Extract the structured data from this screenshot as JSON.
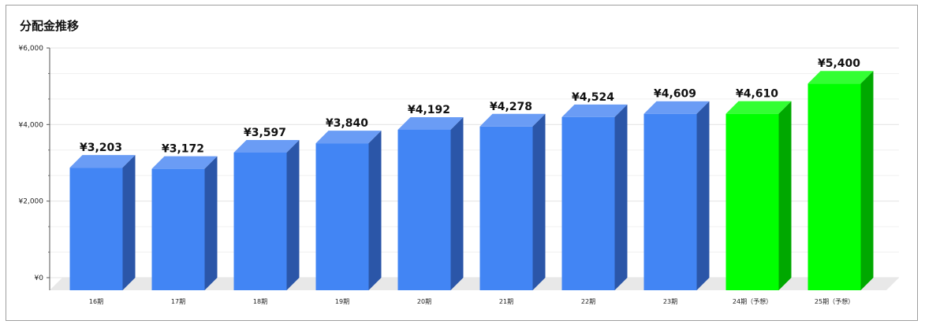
{
  "chart_data": {
    "type": "bar",
    "title": "分配金推移",
    "categories": [
      "16期",
      "17期",
      "18期",
      "19期",
      "20期",
      "21期",
      "22期",
      "23期",
      "24期（予想）",
      "25期（予想）"
    ],
    "values": [
      3203,
      3172,
      3597,
      3840,
      4192,
      4278,
      4524,
      4609,
      4610,
      5400
    ],
    "value_labels": [
      "¥3,203",
      "¥3,172",
      "¥3,597",
      "¥3,840",
      "¥4,192",
      "¥4,278",
      "¥4,524",
      "¥4,609",
      "¥4,610",
      "¥5,400"
    ],
    "ylim": [
      0,
      6000
    ],
    "y_ticks": [
      0,
      2000,
      4000,
      6000
    ],
    "y_tick_labels": [
      "¥0",
      "¥2,000",
      "¥4,000",
      "¥6,000"
    ],
    "xlabel": "",
    "ylabel": "",
    "grid": true,
    "legend": "none",
    "bar_style": "3d",
    "colors": {
      "actual": "#4285f4",
      "actual_top": "#6a9cf5",
      "actual_side": "#2b56a8",
      "forecast": "#00ff00",
      "forecast_top": "#33ff33",
      "forecast_side": "#00a800",
      "grid": "#e6e6e6",
      "floor": "#e8e8e8"
    },
    "forecast_categories": [
      "24期（予想）",
      "25期（予想）"
    ]
  }
}
